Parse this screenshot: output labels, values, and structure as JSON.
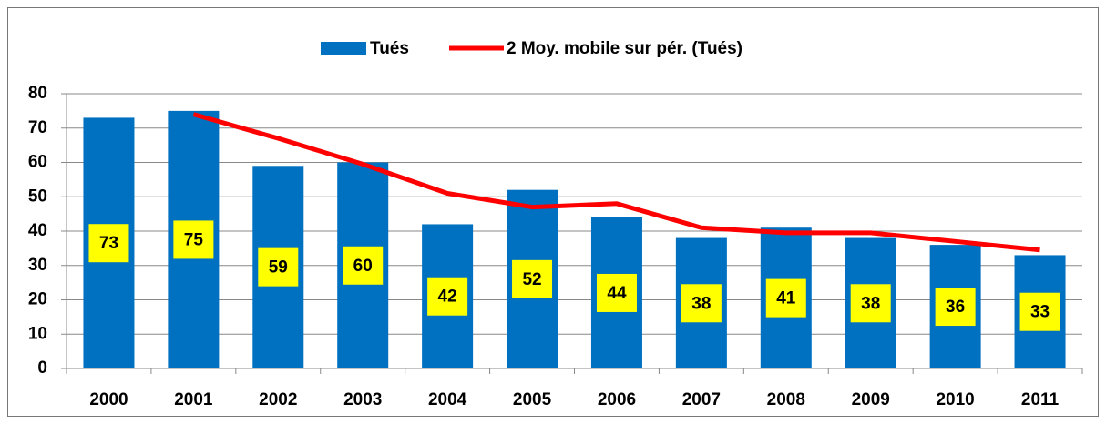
{
  "chart_data": {
    "type": "bar",
    "categories": [
      "2000",
      "2001",
      "2002",
      "2003",
      "2004",
      "2005",
      "2006",
      "2007",
      "2008",
      "2009",
      "2010",
      "2011"
    ],
    "series": [
      {
        "name": "Tués",
        "color": "#0070c0",
        "values": [
          73,
          75,
          59,
          60,
          42,
          52,
          44,
          38,
          41,
          38,
          36,
          33
        ]
      },
      {
        "name": "2 Moy. mobile sur pér. (Tués)",
        "color": "#ff0000",
        "type": "line",
        "values": [
          null,
          74,
          67,
          59.5,
          51,
          47,
          48,
          41,
          39.5,
          39.5,
          37,
          34.5
        ]
      }
    ],
    "ylim": [
      0,
      80
    ],
    "yticks": [
      0,
      10,
      20,
      30,
      40,
      50,
      60,
      70,
      80
    ],
    "grid": true,
    "legend": "top",
    "label_color": "#ffff00"
  }
}
